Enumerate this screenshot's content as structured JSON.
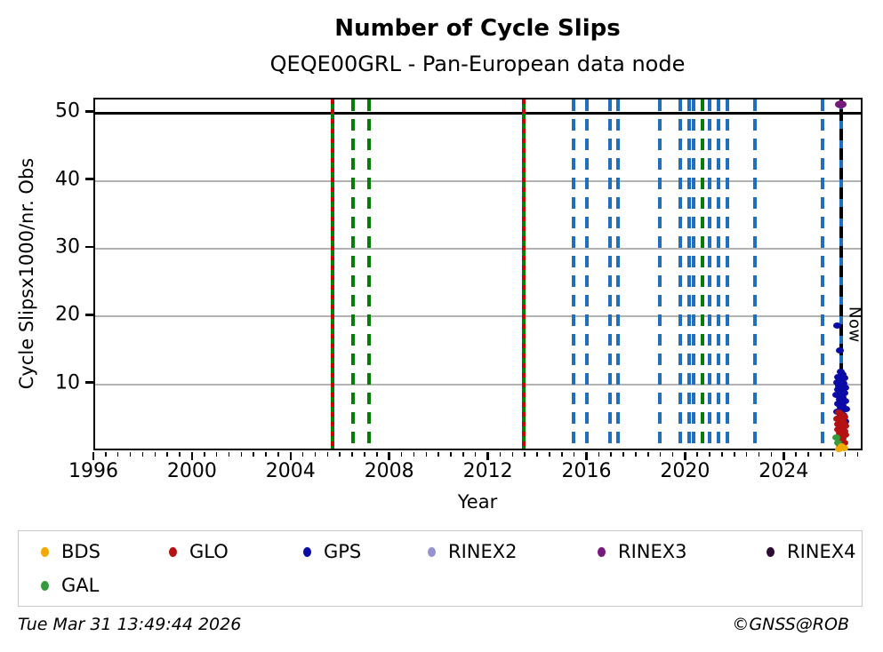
{
  "chart_data": {
    "type": "scatter",
    "title": "Number of Cycle Slips",
    "subtitle": "QEQE00GRL - Pan-European data node",
    "xlabel": "Year",
    "ylabel": "Cycle Slipsx1000/nr. Obs",
    "xlim": [
      1996.0,
      2027.2
    ],
    "ylim": [
      0,
      52
    ],
    "xticks_major": [
      1996,
      2000,
      2004,
      2008,
      2012,
      2016,
      2020,
      2024
    ],
    "xtick_minor_step": 0.5,
    "yticks": [
      10,
      20,
      30,
      40,
      50
    ],
    "grid": "horizontal-gray",
    "hline_black_at": 50,
    "now_annotation": {
      "label": "Now",
      "year": 2026.25,
      "value_top": 21.5
    },
    "event_lines": [
      {
        "year": 2005.62,
        "style": "solid",
        "color": "gal_line",
        "overlay": "glo_line"
      },
      {
        "year": 2006.45,
        "style": "dashed",
        "color": "gal_line"
      },
      {
        "year": 2007.12,
        "style": "dashed",
        "color": "gal_line"
      },
      {
        "year": 2013.4,
        "style": "solid",
        "color": "gal_line",
        "overlay": "glo_line"
      },
      {
        "year": 2015.4,
        "style": "dashed",
        "color": "gps_line"
      },
      {
        "year": 2015.93,
        "style": "dashed",
        "color": "gps_line"
      },
      {
        "year": 2016.87,
        "style": "dashed",
        "color": "gps_line"
      },
      {
        "year": 2017.22,
        "style": "dashed",
        "color": "gps_line"
      },
      {
        "year": 2018.9,
        "style": "dashed",
        "color": "gps_line"
      },
      {
        "year": 2019.75,
        "style": "dashed",
        "color": "gps_line"
      },
      {
        "year": 2020.1,
        "style": "dashed",
        "color": "gps_line"
      },
      {
        "year": 2020.28,
        "style": "dashed",
        "color": "gps_line"
      },
      {
        "year": 2020.62,
        "style": "dashed",
        "color": "gal_line"
      },
      {
        "year": 2020.92,
        "style": "dashed",
        "color": "gps_line"
      },
      {
        "year": 2021.28,
        "style": "dashed",
        "color": "gps_line"
      },
      {
        "year": 2021.64,
        "style": "dashed",
        "color": "gps_line"
      },
      {
        "year": 2022.78,
        "style": "dashed",
        "color": "gps_line"
      },
      {
        "year": 2025.5,
        "style": "dashed",
        "color": "gps_line"
      },
      {
        "year": 2026.25,
        "style": "dashed",
        "color": "gps_line"
      },
      {
        "year": 2026.25,
        "style": "dashed",
        "color": "now_line",
        "phase": 11,
        "name": "now-line"
      }
    ],
    "series": [
      {
        "name": "GPS",
        "color": "gps",
        "marker": [
          9,
          7
        ],
        "points": [
          [
            2026.1,
            18.6
          ],
          [
            2026.2,
            15.0
          ],
          [
            2026.25,
            11.8
          ],
          [
            2026.33,
            11.4
          ],
          [
            2026.15,
            11.1
          ],
          [
            2026.4,
            10.9
          ],
          [
            2026.22,
            10.6
          ],
          [
            2026.1,
            10.3
          ],
          [
            2026.35,
            10.1
          ],
          [
            2026.18,
            9.8
          ],
          [
            2026.44,
            9.5
          ],
          [
            2026.12,
            9.2
          ],
          [
            2026.28,
            9.0
          ],
          [
            2026.38,
            8.7
          ],
          [
            2026.08,
            8.4
          ],
          [
            2026.3,
            8.1
          ],
          [
            2026.2,
            7.8
          ],
          [
            2026.42,
            7.5
          ],
          [
            2026.14,
            7.2
          ],
          [
            2026.33,
            6.9
          ],
          [
            2026.24,
            6.6
          ],
          [
            2026.45,
            6.3
          ],
          [
            2026.11,
            6.0
          ],
          [
            2026.29,
            5.7
          ],
          [
            2026.37,
            5.4
          ],
          [
            2026.17,
            5.1
          ],
          [
            2026.31,
            4.8
          ],
          [
            2026.43,
            4.5
          ],
          [
            2026.22,
            4.1
          ],
          [
            2026.36,
            3.7
          ],
          [
            2026.27,
            3.3
          ]
        ]
      },
      {
        "name": "GLO",
        "color": "glo",
        "marker": [
          9,
          7
        ],
        "points": [
          [
            2026.18,
            5.8
          ],
          [
            2026.3,
            5.5
          ],
          [
            2026.4,
            5.2
          ],
          [
            2026.1,
            4.9
          ],
          [
            2026.25,
            4.7
          ],
          [
            2026.36,
            4.4
          ],
          [
            2026.15,
            4.1
          ],
          [
            2026.44,
            3.9
          ],
          [
            2026.28,
            3.6
          ],
          [
            2026.12,
            3.3
          ],
          [
            2026.38,
            3.1
          ],
          [
            2026.22,
            2.8
          ],
          [
            2026.42,
            2.5
          ],
          [
            2026.17,
            2.2
          ],
          [
            2026.33,
            2.0
          ],
          [
            2026.26,
            1.7
          ],
          [
            2026.4,
            1.4
          ],
          [
            2026.2,
            1.1
          ],
          [
            2026.31,
            0.8
          ]
        ]
      },
      {
        "name": "GAL",
        "color": "gal",
        "marker": [
          9,
          7
        ],
        "points": [
          [
            2026.08,
            2.1
          ],
          [
            2026.12,
            1.4
          ]
        ]
      },
      {
        "name": "BDS",
        "color": "bds",
        "marker": [
          9,
          7
        ],
        "points": [
          [
            2026.28,
            0.9
          ],
          [
            2026.4,
            0.6
          ],
          [
            2026.18,
            0.5
          ]
        ]
      },
      {
        "name": "RINEX2",
        "color": "rinex2",
        "marker": [
          9,
          7
        ],
        "points": []
      },
      {
        "name": "RINEX4",
        "color": "rinex4",
        "marker": [
          9,
          7
        ],
        "points": []
      },
      {
        "name": "RINEX3",
        "color": "rinex3",
        "marker": [
          13,
          9
        ],
        "points": [
          [
            2026.25,
            51.3
          ]
        ]
      }
    ]
  },
  "legend": {
    "items": [
      {
        "label": "BDS",
        "color": "bds",
        "col": 0,
        "row": 0
      },
      {
        "label": "GLO",
        "color": "glo",
        "col": 1,
        "row": 0
      },
      {
        "label": "GPS",
        "color": "gps",
        "col": 2,
        "row": 0
      },
      {
        "label": "RINEX2",
        "color": "rinex2",
        "col": 3,
        "row": 0
      },
      {
        "label": "RINEX3",
        "color": "rinex3",
        "col": 4,
        "row": 0
      },
      {
        "label": "RINEX4",
        "color": "rinex4",
        "col": 5,
        "row": 0
      },
      {
        "label": "GAL",
        "color": "gal",
        "col": 0,
        "row": 1
      }
    ]
  },
  "footer": {
    "timestamp": "Tue Mar 31 13:49:44 2026",
    "copyright": "©GNSS@ROB"
  },
  "colors": {
    "bds": "#f2a900",
    "glo": "#b41212",
    "gps": "#0b0ba8",
    "gal": "#359a3c",
    "rinex2": "#9494d2",
    "rinex3": "#76187c",
    "rinex4": "#2d0a33",
    "gal_line": "#008000",
    "gps_line": "#1f6fbe",
    "glo_line": "#cc0000",
    "now_line": "#000000",
    "grid": "#b3b3b3"
  }
}
